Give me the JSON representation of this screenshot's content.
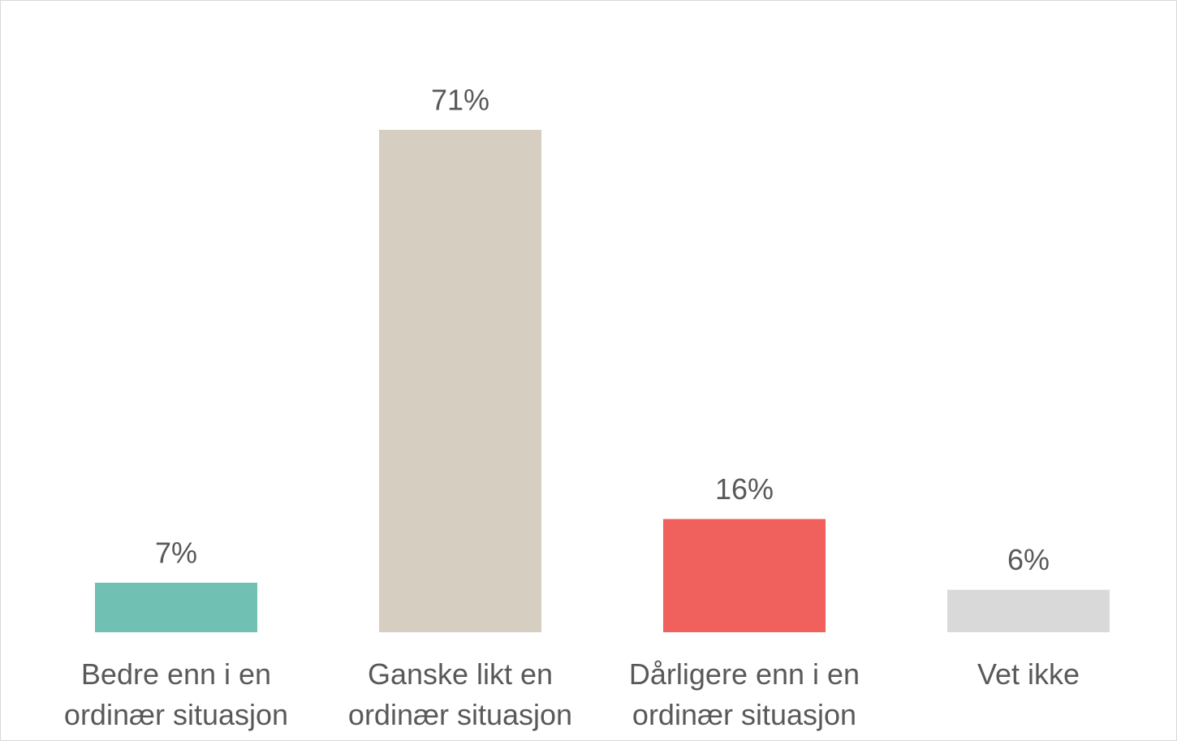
{
  "chart_data": {
    "type": "bar",
    "categories": [
      "Bedre enn i en ordinær situasjon",
      "Ganske likt en ordinær situasjon",
      "Dårligere enn i en ordinær situasjon",
      "Vet ikke"
    ],
    "values": [
      7,
      71,
      16,
      6
    ],
    "value_labels": [
      "7%",
      "71%",
      "16%",
      "6%"
    ],
    "colors": [
      "#70c1b3",
      "#d6cec1",
      "#f0605d",
      "#d9d9d9"
    ]
  }
}
